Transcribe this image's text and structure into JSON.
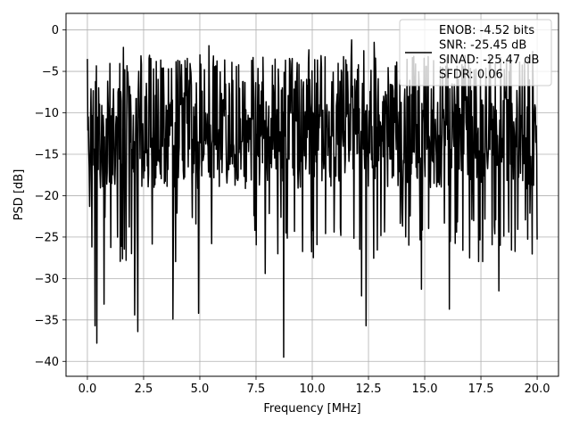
{
  "chart_data": {
    "type": "line",
    "xlabel": "Frequency [MHz]",
    "ylabel": "PSD [dB]",
    "xlim": [
      -0.95,
      20.95
    ],
    "ylim": [
      -41.8,
      2.0
    ],
    "xticks": [
      0.0,
      2.5,
      5.0,
      7.5,
      10.0,
      12.5,
      15.0,
      17.5,
      20.0
    ],
    "xtick_labels": [
      "0.0",
      "2.5",
      "5.0",
      "7.5",
      "10.0",
      "12.5",
      "15.0",
      "17.5",
      "20.0"
    ],
    "yticks": [
      0,
      -5,
      -10,
      -15,
      -20,
      -25,
      -30,
      -35,
      -40
    ],
    "ytick_labels": [
      "0",
      "−5",
      "−10",
      "−15",
      "−20",
      "−25",
      "−30",
      "−35",
      "−40"
    ],
    "grid": true,
    "legend_position": "top-right",
    "series": [
      {
        "name": "ENOB: -4.52 bits\nSNR: -25.45 dB\nSINAD: -25.47 dB\nSFDR: 0.06",
        "color": "#000000",
        "description": "noise-like PSD trace spanning 0 to 20 MHz; envelope about -3 dB, baseline mostly -8 to -22 dB",
        "x_range": [
          0.0,
          20.0
        ],
        "n_points": 1000,
        "typical_range": [
          -22,
          -3
        ],
        "notable_points": [
          {
            "x": 0.0,
            "y": -3.5
          },
          {
            "x": 0.05,
            "y": -10.5
          },
          {
            "x": 0.1,
            "y": -21.3
          },
          {
            "x": 0.2,
            "y": -26.2
          },
          {
            "x": 0.35,
            "y": -35.7
          },
          {
            "x": 0.42,
            "y": -37.8
          },
          {
            "x": 0.75,
            "y": -33.1
          },
          {
            "x": 2.1,
            "y": -34.4
          },
          {
            "x": 2.25,
            "y": -36.4
          },
          {
            "x": 3.8,
            "y": -34.9
          },
          {
            "x": 4.95,
            "y": -34.2
          },
          {
            "x": 7.9,
            "y": -29.4
          },
          {
            "x": 8.73,
            "y": -39.5
          },
          {
            "x": 12.2,
            "y": -32.1
          },
          {
            "x": 12.4,
            "y": -35.7
          },
          {
            "x": 14.85,
            "y": -31.3
          },
          {
            "x": 16.1,
            "y": -33.7
          },
          {
            "x": 18.3,
            "y": -31.5
          },
          {
            "x": 1.6,
            "y": -2.1
          },
          {
            "x": 5.0,
            "y": -3.0
          },
          {
            "x": 5.4,
            "y": -1.9
          },
          {
            "x": 7.8,
            "y": -3.3
          },
          {
            "x": 9.85,
            "y": -2.4
          },
          {
            "x": 10.4,
            "y": -3.1
          },
          {
            "x": 11.75,
            "y": -1.2
          },
          {
            "x": 12.3,
            "y": -2.5
          },
          {
            "x": 12.75,
            "y": -1.5
          },
          {
            "x": 16.8,
            "y": -3.1
          },
          {
            "x": 19.8,
            "y": -2.6
          },
          {
            "x": 20.0,
            "y": -25.3
          }
        ]
      }
    ]
  }
}
